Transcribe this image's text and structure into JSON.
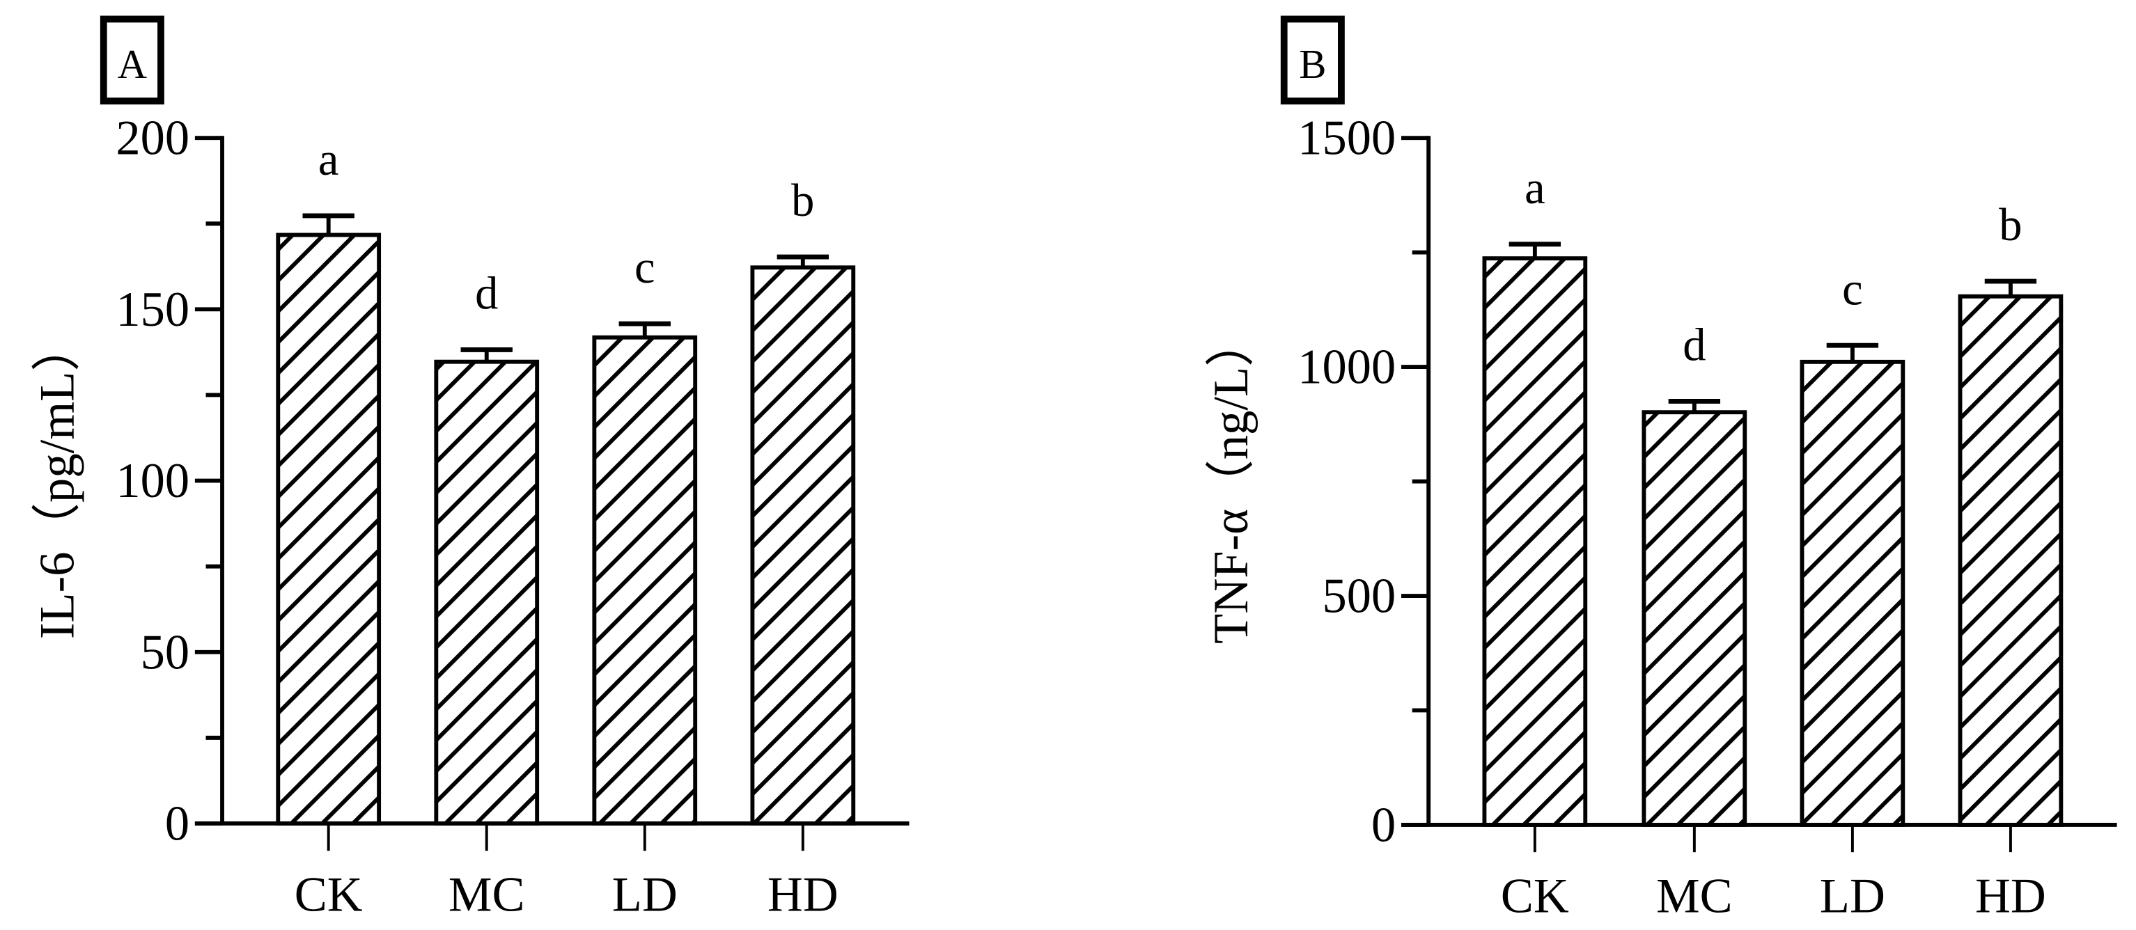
{
  "figure": {
    "panels": [
      {
        "id": "A",
        "panel_label": "A",
        "y_axis_title": "IL-6（pg/mL）",
        "y_ticks": [
          "0",
          "50",
          "100",
          "150",
          "200"
        ],
        "x_categories": [
          "CK",
          "MC",
          "LD",
          "HD"
        ],
        "significance_letters": [
          "a",
          "d",
          "c",
          "b"
        ]
      },
      {
        "id": "B",
        "panel_label": "B",
        "y_axis_title": "TNF-α（ng/L）",
        "y_ticks": [
          "0",
          "500",
          "1000",
          "1500"
        ],
        "x_categories": [
          "CK",
          "MC",
          "LD",
          "HD"
        ],
        "significance_letters": [
          "a",
          "d",
          "c",
          "b"
        ]
      }
    ],
    "colors": {
      "ink": "#000000",
      "background": "#ffffff",
      "bar_fill": "#ffffff",
      "hatch": "#000000"
    }
  },
  "chart_data": [
    {
      "type": "bar",
      "title": "A",
      "xlabel": "",
      "ylabel": "IL-6 (pg/mL)",
      "categories": [
        "CK",
        "MC",
        "LD",
        "HD"
      ],
      "values": [
        171.7,
        134.7,
        141.8,
        162.2
      ],
      "error_upper": [
        5.6,
        3.5,
        4.0,
        3.1
      ],
      "significance": [
        "a",
        "d",
        "c",
        "b"
      ],
      "ylim": [
        0,
        200
      ],
      "yticks": [
        0,
        50,
        100,
        150,
        200
      ],
      "minor_yticks": [
        25,
        75,
        125,
        175
      ],
      "grid": false,
      "legend": null,
      "bar_style": "white fill with diagonal hatching, black outline"
    },
    {
      "type": "bar",
      "title": "B",
      "xlabel": "",
      "ylabel": "TNF-α (ng/L)",
      "categories": [
        "CK",
        "MC",
        "LD",
        "HD"
      ],
      "values": [
        1237,
        901,
        1011,
        1154
      ],
      "error_upper": [
        31,
        24,
        36,
        33
      ],
      "significance": [
        "a",
        "d",
        "c",
        "b"
      ],
      "ylim": [
        0,
        1500
      ],
      "yticks": [
        0,
        500,
        1000,
        1500
      ],
      "minor_yticks": [
        250,
        750,
        1250
      ],
      "grid": false,
      "legend": null,
      "bar_style": "white fill with diagonal hatching, black outline"
    }
  ]
}
